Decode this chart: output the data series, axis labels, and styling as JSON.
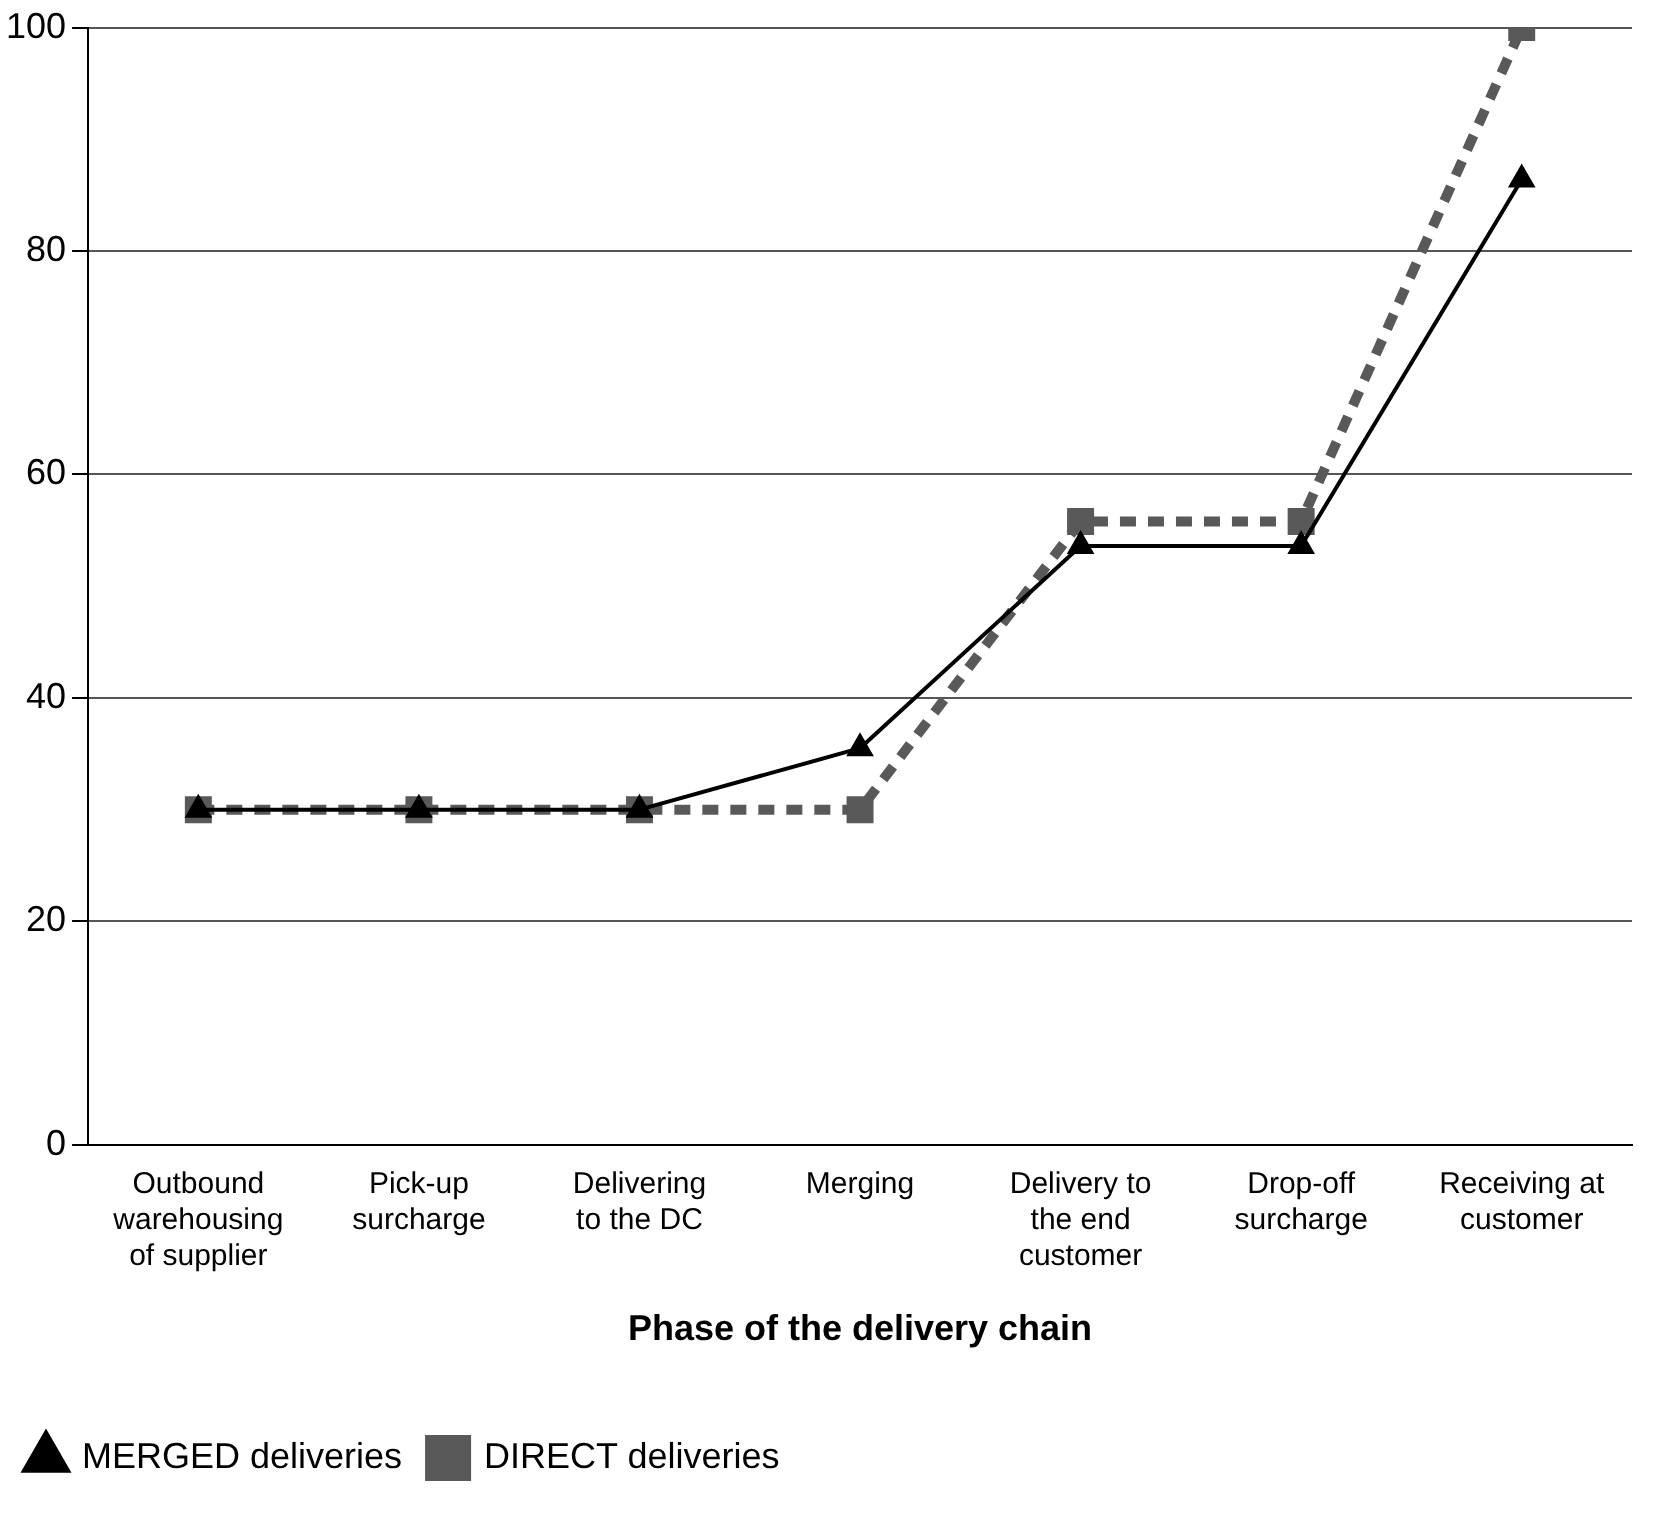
{
  "chart_data": {
    "type": "line",
    "xlabel": "Phase of the delivery chain",
    "categories": [
      "Outbound warehousing of supplier",
      "Pick-up surcharge",
      "Delivering to the DC",
      "Merging",
      "Delivery to the end customer",
      "Drop-off surcharge",
      "Receiving at customer"
    ],
    "series": [
      {
        "name": "MERGED deliveries",
        "color": "#000000",
        "marker": "triangle",
        "line_style": "solid",
        "values": [
          30,
          30,
          30,
          35.5,
          53.6,
          53.6,
          86.4
        ]
      },
      {
        "name": "DIRECT deliveries",
        "color": "#595959",
        "marker": "square",
        "line_style": "dashed",
        "values": [
          30,
          30,
          30,
          30,
          55.8,
          55.8,
          100
        ]
      }
    ],
    "ylim": [
      0,
      100
    ],
    "yticks": [
      0,
      20,
      40,
      60,
      80,
      100
    ],
    "grid": "y",
    "legend": "bottom left"
  }
}
